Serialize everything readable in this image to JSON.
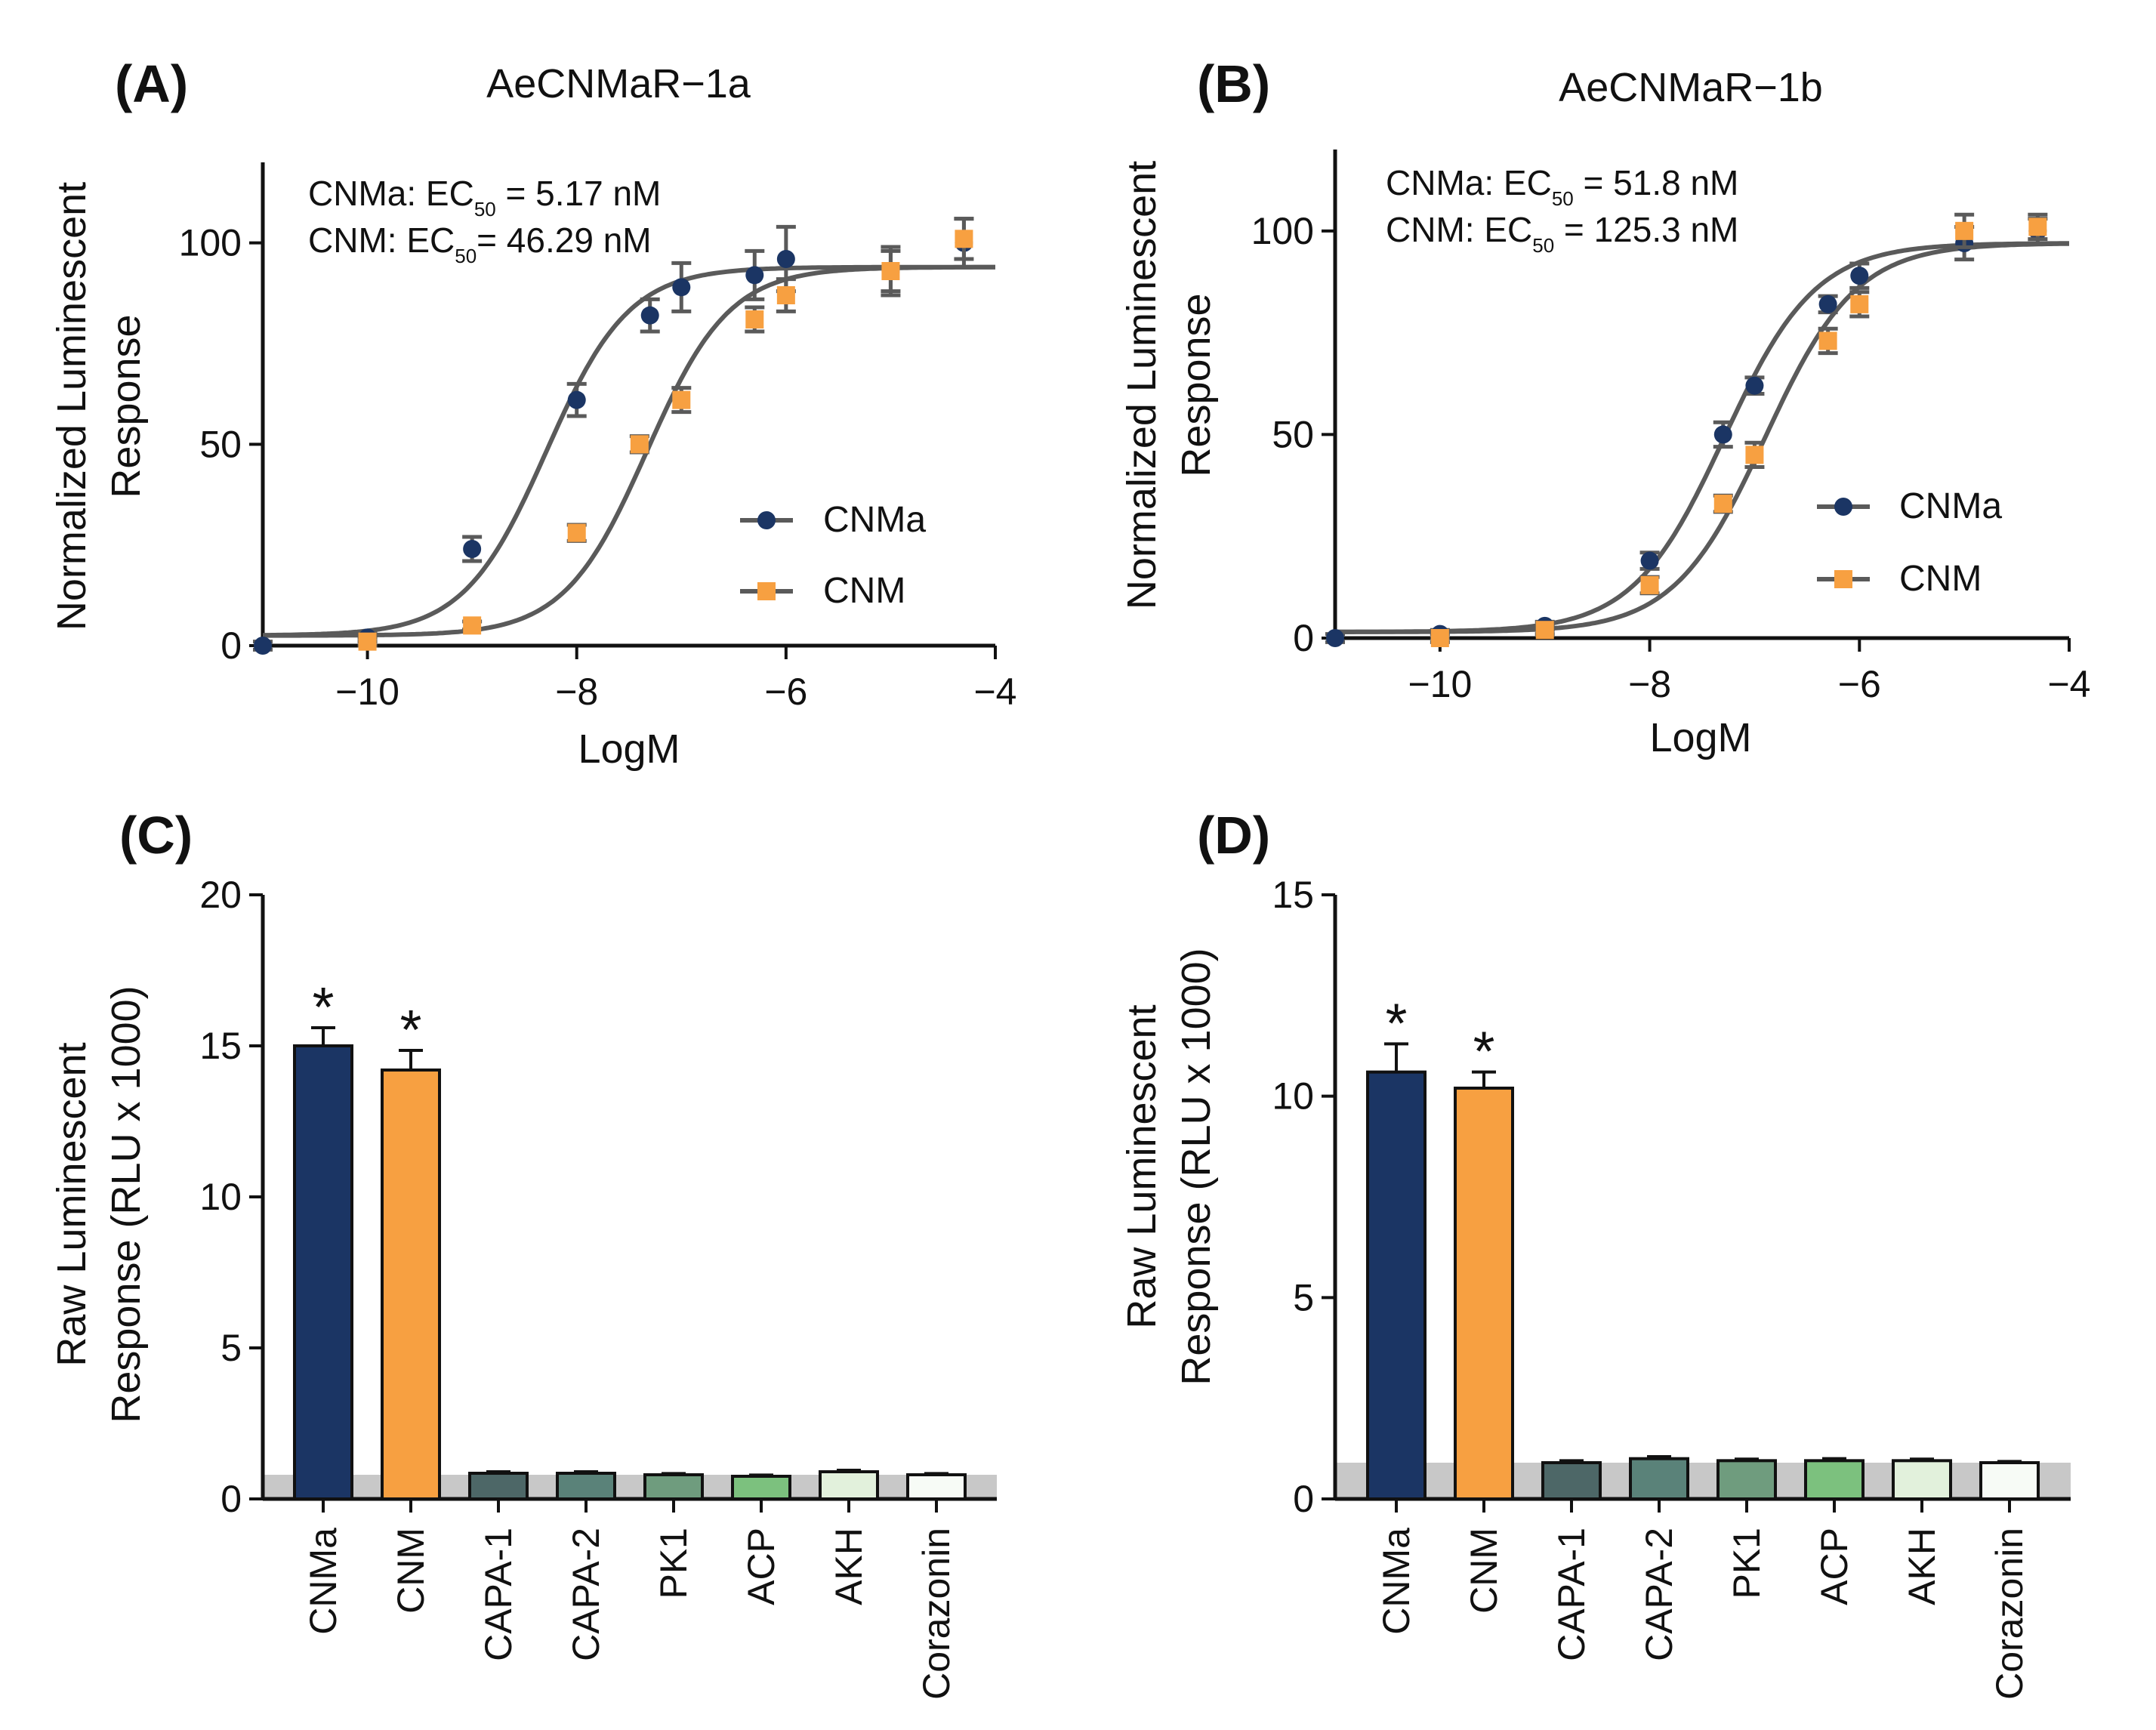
{
  "chart_data": [
    {
      "panel": "(A)",
      "type": "scatter",
      "title": "AeCNMaR−1a",
      "xlabel": "LogM",
      "ylabel": [
        "Normalized Luminescent",
        "Response"
      ],
      "xlim": [
        -11,
        -4
      ],
      "ylim": [
        0,
        120
      ],
      "xticks": [
        -10,
        -8,
        -6,
        -4
      ],
      "xtick_labels": [
        "−10",
        "−8",
        "−6",
        "−4"
      ],
      "yticks": [
        0,
        50,
        100
      ],
      "ytick_labels": [
        "0",
        "50",
        "100"
      ],
      "annotations": [
        {
          "prefix": "CNMa: EC",
          "sub": "50",
          "suffix": " = 5.17 nM"
        },
        {
          "prefix": "CNM: EC",
          "sub": "50",
          "suffix": "= 46.29 nM"
        }
      ],
      "legend": [
        "CNMa",
        "CNM"
      ],
      "series": [
        {
          "name": "CNMa",
          "color": "#1b3564",
          "marker": "circle",
          "x": [
            -11,
            -10,
            -9,
            -8,
            -7.3,
            -7,
            -6.3,
            -6,
            -5,
            -4.3
          ],
          "y": [
            0,
            2,
            24,
            61,
            82,
            89,
            92,
            96,
            93,
            100
          ],
          "err": [
            1,
            1,
            3,
            4,
            4,
            6,
            6,
            8,
            6,
            6
          ],
          "fit": {
            "bottom": 2.5,
            "top": 94,
            "logEC50": -8.29,
            "hill": 1.1
          }
        },
        {
          "name": "CNM",
          "color": "#f7a041",
          "marker": "square",
          "x": [
            -10,
            -9,
            -8,
            -7.4,
            -7,
            -6.3,
            -6,
            -5,
            -4.3
          ],
          "y": [
            1,
            5,
            28,
            50,
            61,
            81,
            87,
            93,
            101
          ],
          "err": [
            1,
            1,
            2,
            2,
            3,
            3,
            4,
            5,
            5
          ],
          "fit": {
            "bottom": 2.5,
            "top": 94,
            "logEC50": -7.33,
            "hill": 1.1
          }
        }
      ]
    },
    {
      "panel": "(B)",
      "type": "scatter",
      "title": "AeCNMaR−1b",
      "xlabel": "LogM",
      "ylabel": [
        "Normalized Luminescent",
        "Response"
      ],
      "xlim": [
        -11,
        -4
      ],
      "ylim": [
        0,
        120
      ],
      "xticks": [
        -10,
        -8,
        -6,
        -4
      ],
      "xtick_labels": [
        "−10",
        "−8",
        "−6",
        "−4"
      ],
      "yticks": [
        0,
        50,
        100
      ],
      "ytick_labels": [
        "0",
        "50",
        "100"
      ],
      "annotations": [
        {
          "prefix": "CNMa: EC",
          "sub": "50",
          "suffix": " = 51.8 nM"
        },
        {
          "prefix": "CNM: EC",
          "sub": "50",
          "suffix": " = 125.3 nM"
        }
      ],
      "legend": [
        "CNMa",
        "CNM"
      ],
      "series": [
        {
          "name": "CNMa",
          "color": "#1b3564",
          "marker": "circle",
          "x": [
            -11,
            -10,
            -9,
            -8,
            -7.3,
            -7,
            -6.3,
            -6,
            -5,
            -4.3
          ],
          "y": [
            0,
            1,
            3,
            19,
            50,
            62,
            82,
            89,
            97,
            100
          ],
          "err": [
            1,
            1,
            1,
            2,
            3,
            2,
            2,
            3,
            4,
            3
          ],
          "fit": {
            "bottom": 1.5,
            "top": 97,
            "logEC50": -7.29,
            "hill": 1.0
          }
        },
        {
          "name": "CNM",
          "color": "#f7a041",
          "marker": "square",
          "x": [
            -10,
            -9,
            -8,
            -7.3,
            -7,
            -6.3,
            -6,
            -5,
            -4.3
          ],
          "y": [
            0,
            2,
            13,
            33,
            45,
            73,
            82,
            100,
            101
          ],
          "err": [
            1,
            1,
            2,
            2,
            3,
            3,
            3,
            4,
            3
          ],
          "fit": {
            "bottom": 1.5,
            "top": 97,
            "logEC50": -6.9,
            "hill": 1.0
          }
        }
      ]
    },
    {
      "panel": "(C)",
      "type": "bar",
      "title": "",
      "xlabel": "",
      "ylabel": [
        "Raw Luminescent",
        "Response (RLU x 1000)"
      ],
      "ylim": [
        0,
        20
      ],
      "yticks": [
        0,
        5,
        10,
        15,
        20
      ],
      "ytick_labels": [
        "0",
        "5",
        "10",
        "15",
        "20"
      ],
      "baseline_band": 0.8,
      "categories": [
        "CNMa",
        "CNM",
        "CAPA-1",
        "CAPA-2",
        "PK1",
        "ACP",
        "AKH",
        "Corazonin"
      ],
      "values": [
        15.0,
        14.2,
        0.85,
        0.85,
        0.8,
        0.75,
        0.9,
        0.8
      ],
      "errors": [
        0.6,
        0.65,
        0.05,
        0.05,
        0.04,
        0.04,
        0.05,
        0.04
      ],
      "colors": [
        "#1b3564",
        "#f7a041",
        "#4d6767",
        "#5a8279",
        "#6f9c7e",
        "#7cc17e",
        "#e2f1dc",
        "#f7fbf6"
      ],
      "significance": [
        "*",
        "*",
        "",
        "",
        "",
        "",
        "",
        ""
      ]
    },
    {
      "panel": "(D)",
      "type": "bar",
      "title": "",
      "xlabel": "",
      "ylabel": [
        "Raw Luminescent",
        "Response (RLU x 1000)"
      ],
      "ylim": [
        0,
        15
      ],
      "yticks": [
        0,
        5,
        10,
        15
      ],
      "ytick_labels": [
        "0",
        "5",
        "10",
        "15"
      ],
      "baseline_band": 0.9,
      "categories": [
        "CNMa",
        "CNM",
        "CAPA-1",
        "CAPA-2",
        "PK1",
        "ACP",
        "AKH",
        "Corazonin"
      ],
      "values": [
        10.6,
        10.2,
        0.9,
        1.0,
        0.95,
        0.95,
        0.95,
        0.9
      ],
      "errors": [
        0.7,
        0.4,
        0.05,
        0.05,
        0.04,
        0.05,
        0.04,
        0.03
      ],
      "colors": [
        "#1b3564",
        "#f7a041",
        "#4d6767",
        "#5a8279",
        "#6f9c7e",
        "#7cc17e",
        "#e2f1dc",
        "#f7fbf6"
      ],
      "significance": [
        "*",
        "*",
        "",
        "",
        "",
        "",
        "",
        ""
      ]
    }
  ]
}
